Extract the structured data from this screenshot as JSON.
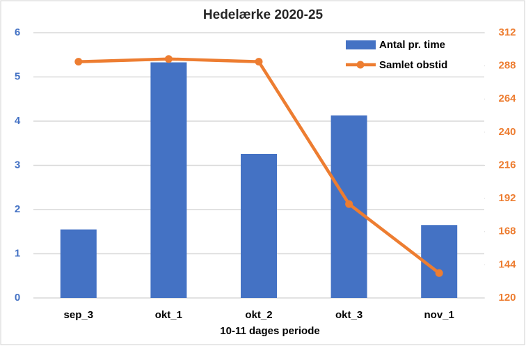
{
  "chart_data": {
    "type": "bar-line",
    "title": "Hedelærke 2020-25",
    "x_label": "10-11 dages periode",
    "categories": [
      "sep_3",
      "okt_1",
      "okt_2",
      "okt_3",
      "nov_1"
    ],
    "series": [
      {
        "name": "Antal pr. time",
        "color": "#4472c4",
        "type": "bar",
        "values": [
          1.55,
          5.33,
          3.26,
          4.13,
          1.65
        ]
      },
      {
        "name": "Samlet obstid",
        "color": "#ed7d31",
        "type": "line",
        "axis": "y2",
        "values": [
          291,
          293,
          291,
          188,
          138
        ]
      }
    ],
    "ylim": [
      0,
      6
    ],
    "yticks": [
      0,
      1,
      2,
      3,
      4,
      5,
      6
    ],
    "y2lim": [
      120,
      312
    ],
    "y2ticks": [
      120,
      144,
      168,
      192,
      216,
      240,
      264,
      288,
      312
    ],
    "grid": true,
    "legend": "top-right"
  }
}
